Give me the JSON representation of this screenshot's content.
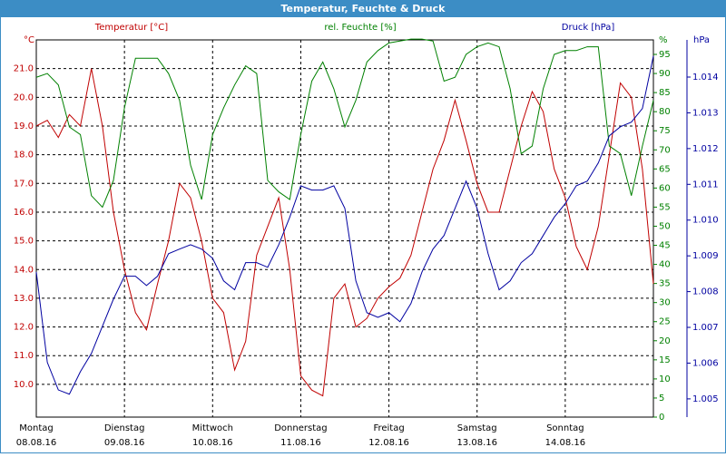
{
  "chart_data": {
    "type": "line",
    "title": "Temperatur, Feuchte & Druck",
    "ylabel": "Temperatur [°C]",
    "y_unit": "°C",
    "y2label": "rel. Feuchte [%]",
    "y2_unit": "%",
    "y3label": "Druck [hPa]",
    "y3_unit": "hPa",
    "xlim": [
      0,
      168
    ],
    "xticks": [
      {
        "value": 0,
        "label": "Montag"
      },
      {
        "value": 24,
        "label": "Dienstag"
      },
      {
        "value": 48,
        "label": "Mittwoch"
      },
      {
        "value": 72,
        "label": "Donnerstag"
      },
      {
        "value": 96,
        "label": "Freitag"
      },
      {
        "value": 120,
        "label": "Samstag"
      },
      {
        "value": 144,
        "label": "Sonntag"
      }
    ],
    "xtick_dates": [
      "08.08.16",
      "09.08.16",
      "10.08.16",
      "11.08.16",
      "12.08.16",
      "13.08.16",
      "14.08.16"
    ],
    "ylim": [
      8.86,
      22.0
    ],
    "yticks": [
      {
        "value": 10,
        "label": "10.0"
      },
      {
        "value": 11,
        "label": "11.0"
      },
      {
        "value": 12,
        "label": "12.0"
      },
      {
        "value": 13,
        "label": "13.0"
      },
      {
        "value": 14,
        "label": "14.0"
      },
      {
        "value": 15,
        "label": "15.0"
      },
      {
        "value": 16,
        "label": "16.0"
      },
      {
        "value": 17,
        "label": "17.0"
      },
      {
        "value": 18,
        "label": "18.0"
      },
      {
        "value": 19,
        "label": "19.0"
      },
      {
        "value": 20,
        "label": "20.0"
      },
      {
        "value": 21,
        "label": "21.0"
      }
    ],
    "y2lim": [
      0,
      98.8
    ],
    "y2ticks": [
      0,
      5,
      10,
      15,
      20,
      25,
      30,
      35,
      40,
      45,
      50,
      55,
      60,
      65,
      70,
      75,
      80,
      85,
      90,
      95
    ],
    "y3lim": [
      1.00449,
      1.01504
    ],
    "y3ticks": [
      1.005,
      1.006,
      1.007,
      1.008,
      1.009,
      {
        "value": 1.01,
        "label": "1.010"
      },
      1.011,
      1.012,
      1.013,
      1.014
    ],
    "grid": true,
    "x": [
      0,
      3,
      6,
      9,
      12,
      15,
      18,
      21,
      24,
      27,
      30,
      33,
      36,
      39,
      42,
      45,
      48,
      51,
      54,
      57,
      60,
      63,
      66,
      69,
      72,
      75,
      78,
      81,
      84,
      87,
      90,
      93,
      96,
      99,
      102,
      105,
      108,
      111,
      114,
      117,
      120,
      123,
      126,
      129,
      132,
      135,
      138,
      141,
      144,
      147,
      150,
      153,
      156,
      159,
      162,
      165,
      168
    ],
    "series": [
      {
        "name": "Temperatur [°C]",
        "color": "#c00000",
        "axis": "y",
        "values": [
          19.0,
          19.2,
          18.6,
          19.4,
          19.0,
          21.0,
          19.0,
          16.0,
          14.0,
          12.5,
          11.9,
          13.5,
          15.0,
          17.0,
          16.5,
          15.0,
          13.0,
          12.5,
          10.5,
          11.5,
          14.5,
          15.5,
          16.5,
          14.0,
          10.3,
          9.8,
          9.6,
          13.0,
          13.5,
          12.0,
          12.3,
          13.0,
          13.4,
          13.7,
          14.5,
          16.0,
          17.5,
          18.5,
          19.9,
          18.5,
          17.0,
          16.0,
          16.0,
          17.5,
          19.0,
          20.2,
          19.5,
          17.5,
          16.5,
          14.8,
          14.0,
          15.5,
          18.0,
          20.5,
          20.0,
          17.5,
          13.5
        ]
      },
      {
        "name": "rel. Feuchte [%]",
        "color": "#008000",
        "axis": "y2",
        "values": [
          89,
          90,
          87,
          76,
          74,
          58,
          55,
          62,
          81,
          94,
          94,
          94,
          90,
          83,
          66,
          57,
          74,
          81,
          87,
          92,
          90,
          62,
          59,
          57,
          74,
          88,
          93,
          86,
          76,
          83,
          93,
          96,
          98,
          98.5,
          99,
          99,
          98.5,
          88,
          89,
          95,
          97,
          98,
          97,
          86,
          69,
          71,
          86,
          95,
          96,
          96,
          97,
          97,
          71,
          69,
          58,
          71,
          83
        ]
      },
      {
        "name": "Druck [hPa]",
        "color": "#0000a0",
        "axis": "y3",
        "values": [
          1.00855,
          1.00602,
          1.00525,
          1.00513,
          1.00576,
          1.00627,
          1.00703,
          1.00779,
          1.00843,
          1.00843,
          1.00817,
          1.00843,
          1.00906,
          1.00919,
          1.00931,
          1.00919,
          1.00893,
          1.0083,
          1.00805,
          1.00881,
          1.00881,
          1.00868,
          1.00931,
          1.01008,
          1.01096,
          1.01084,
          1.01084,
          1.01096,
          1.01033,
          1.0083,
          1.00741,
          1.00728,
          1.00741,
          1.00716,
          1.00767,
          1.00855,
          1.00919,
          1.00957,
          1.01033,
          1.01109,
          1.01033,
          1.00906,
          1.00805,
          1.0083,
          1.00881,
          1.00906,
          1.00957,
          1.01008,
          1.01046,
          1.01096,
          1.01109,
          1.0116,
          1.01236,
          1.01261,
          1.01274,
          1.01312,
          1.01459
        ]
      }
    ]
  }
}
